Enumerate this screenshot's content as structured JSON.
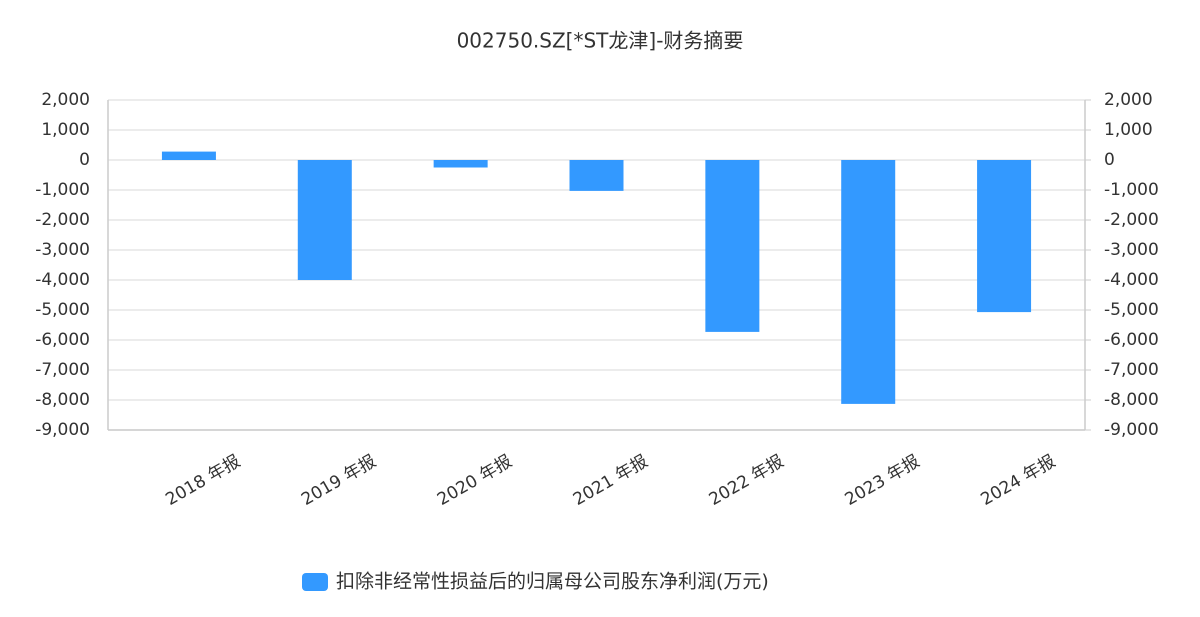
{
  "chart_data": {
    "type": "bar",
    "title": "002750.SZ[*ST龙津]-财务摘要",
    "categories": [
      "2018 年报",
      "2019 年报",
      "2020 年报",
      "2021 年报",
      "2022 年报",
      "2023 年报",
      "2024 年报"
    ],
    "series": [
      {
        "name": "扣除非经常性损益后的归属母公司股东净利润(万元)",
        "color": "#3399ff",
        "values": [
          280,
          -4000,
          -250,
          -1030,
          -5730,
          -8130,
          -5070
        ]
      }
    ],
    "ylim": [
      -9000,
      2000
    ],
    "yticks": [
      {
        "value": 2000,
        "label": "2,000"
      },
      {
        "value": 1000,
        "label": "1,000"
      },
      0,
      {
        "value": -1000,
        "label": "-1,000"
      },
      {
        "value": -2000,
        "label": "-2,000"
      },
      {
        "value": -3000,
        "label": "-3,000"
      },
      {
        "value": -4000,
        "label": "-4,000"
      },
      {
        "value": -5000,
        "label": "-5,000"
      },
      {
        "value": -6000,
        "label": "-6,000"
      },
      {
        "value": -7000,
        "label": "-7,000"
      },
      {
        "value": -8000,
        "label": "-8,000"
      },
      {
        "value": -9000,
        "label": "-9,000"
      }
    ],
    "y2lim": [
      -9000,
      2000
    ],
    "y2ticks": [
      {
        "value": 2000,
        "label": "2,000"
      },
      {
        "value": 1000,
        "label": "1,000"
      },
      0,
      {
        "value": -1000,
        "label": "-1,000"
      },
      {
        "value": -2000,
        "label": "-2,000"
      },
      {
        "value": -3000,
        "label": "-3,000"
      },
      {
        "value": -4000,
        "label": "-4,000"
      },
      {
        "value": -5000,
        "label": "-5,000"
      },
      {
        "value": -6000,
        "label": "-6,000"
      },
      {
        "value": -7000,
        "label": "-7,000"
      },
      {
        "value": -8000,
        "label": "-8,000"
      },
      {
        "value": -9000,
        "label": "-9,000"
      }
    ],
    "grid": true,
    "legend": "bottom"
  }
}
